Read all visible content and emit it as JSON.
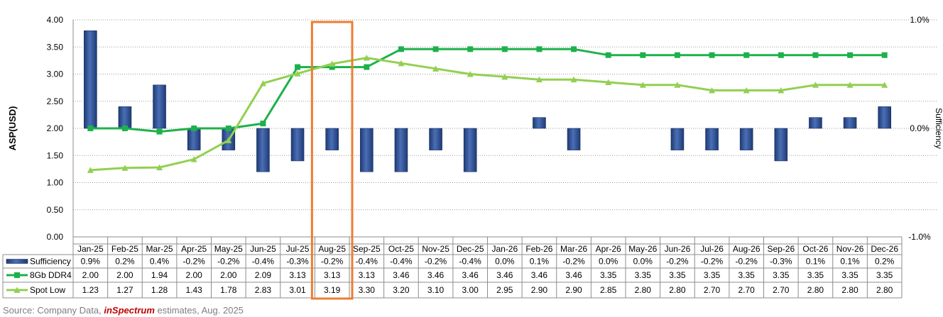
{
  "chart_data": {
    "type": "bar",
    "categories": [
      "Jan-25",
      "Feb-25",
      "Mar-25",
      "Apr-25",
      "May-25",
      "Jun-25",
      "Jul-25",
      "Aug-25",
      "Sep-25",
      "Oct-25",
      "Nov-25",
      "Dec-25",
      "Jan-26",
      "Feb-26",
      "Mar-26",
      "Apr-26",
      "May-26",
      "Jun-26",
      "Jul-26",
      "Aug-26",
      "Sep-26",
      "Oct-26",
      "Nov-26",
      "Dec-26"
    ],
    "ylabel": "ASP(USD)",
    "ylabel_right": "Sufficiency",
    "ylim": [
      0,
      4
    ],
    "y_ticks": [
      "0.00",
      "0.50",
      "1.00",
      "1.50",
      "2.00",
      "2.50",
      "3.00",
      "3.50",
      "4.00"
    ],
    "y2lim": [
      -1.0,
      1.0
    ],
    "y2_ticks": [
      "-1.0%",
      "0.0%",
      "1.0%"
    ],
    "grid": true,
    "highlight_category": "Aug-25",
    "highlight_color": "#ed7d31",
    "series": [
      {
        "name": "Sufficiency",
        "type": "bar",
        "axis": "right",
        "color": "#2f4f8f",
        "values": [
          0.9,
          0.2,
          0.4,
          -0.2,
          -0.2,
          -0.4,
          -0.3,
          -0.2,
          -0.4,
          -0.4,
          -0.2,
          -0.4,
          0.0,
          0.1,
          -0.2,
          0.0,
          0.0,
          -0.2,
          -0.2,
          -0.2,
          -0.3,
          0.1,
          0.1,
          0.2
        ],
        "labels": [
          "0.9%",
          "0.2%",
          "0.4%",
          "-0.2%",
          "-0.2%",
          "-0.4%",
          "-0.3%",
          "-0.2%",
          "-0.4%",
          "-0.4%",
          "-0.2%",
          "-0.4%",
          "0.0%",
          "0.1%",
          "-0.2%",
          "0.0%",
          "0.0%",
          "-0.2%",
          "-0.2%",
          "-0.2%",
          "-0.3%",
          "0.1%",
          "0.1%",
          "0.2%"
        ]
      },
      {
        "name": "8Gb DDR4",
        "type": "line",
        "axis": "left",
        "color": "#1db14b",
        "values": [
          2.0,
          2.0,
          1.94,
          2.0,
          2.0,
          2.09,
          3.13,
          3.13,
          3.13,
          3.46,
          3.46,
          3.46,
          3.46,
          3.46,
          3.46,
          3.35,
          3.35,
          3.35,
          3.35,
          3.35,
          3.35,
          3.35,
          3.35,
          3.35
        ],
        "labels": [
          "2.00",
          "2.00",
          "1.94",
          "2.00",
          "2.00",
          "2.09",
          "3.13",
          "3.13",
          "3.13",
          "3.46",
          "3.46",
          "3.46",
          "3.46",
          "3.46",
          "3.46",
          "3.35",
          "3.35",
          "3.35",
          "3.35",
          "3.35",
          "3.35",
          "3.35",
          "3.35",
          "3.35"
        ]
      },
      {
        "name": "Spot Low",
        "type": "line",
        "axis": "left",
        "color": "#92d050",
        "values": [
          1.23,
          1.27,
          1.28,
          1.43,
          1.78,
          2.83,
          3.01,
          3.19,
          3.3,
          3.2,
          3.1,
          3.0,
          2.95,
          2.9,
          2.9,
          2.85,
          2.8,
          2.8,
          2.7,
          2.7,
          2.7,
          2.8,
          2.8,
          2.8
        ],
        "labels": [
          "1.23",
          "1.27",
          "1.28",
          "1.43",
          "1.78",
          "2.83",
          "3.01",
          "3.19",
          "3.30",
          "3.20",
          "3.10",
          "3.00",
          "2.95",
          "2.90",
          "2.90",
          "2.85",
          "2.80",
          "2.80",
          "2.70",
          "2.70",
          "2.70",
          "2.80",
          "2.80",
          "2.80"
        ]
      }
    ]
  },
  "source": {
    "prefix": "Source: Company Data, ",
    "brand": "inSpectrum",
    "suffix": " estimates, Aug. 2025"
  }
}
